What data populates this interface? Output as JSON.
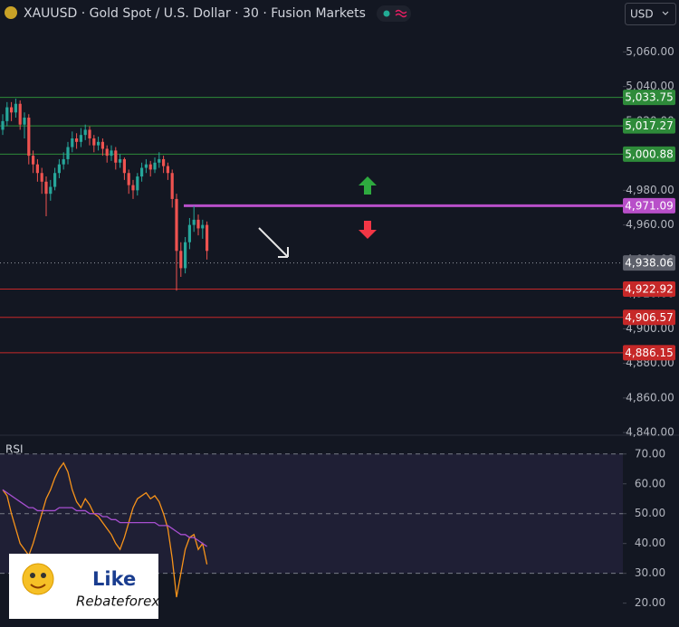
{
  "chart_data": {
    "type": "candlestick",
    "title": "XAUUSD · Gold Spot / U.S. Dollar · 30 · Fusion Markets",
    "currency": "USD",
    "up_color": "#26a69a",
    "down_color": "#ef5350",
    "ylim": [
      4839,
      5090
    ],
    "yticks": [
      {
        "value": 4840,
        "label": "4,840.00"
      },
      {
        "value": 4860,
        "label": "4,860.00"
      },
      {
        "value": 4880,
        "label": "4,880.00"
      },
      {
        "value": 4900,
        "label": "4,900.00"
      },
      {
        "value": 4920,
        "label": "4,920.00"
      },
      {
        "value": 4940,
        "label": "4,940.00"
      },
      {
        "value": 4960,
        "label": "4,960.00"
      },
      {
        "value": 4980,
        "label": "4,980.00"
      },
      {
        "value": 5000,
        "label": "5,000.00"
      },
      {
        "value": 5020,
        "label": "5,020.00"
      },
      {
        "value": 5040,
        "label": "5,040.00"
      },
      {
        "value": 5060,
        "label": "5,060.00"
      }
    ],
    "open": [
      5015,
      5020,
      5028,
      5025,
      5030,
      5018,
      5022,
      5000,
      4995,
      4990,
      4985,
      4978,
      4982,
      4990,
      4995,
      4998,
      5005,
      5010,
      5008,
      5012,
      5015,
      5010,
      5006,
      5008,
      5004,
      5000,
      5003,
      4996,
      4998,
      4990,
      4983,
      4980,
      4988,
      4993,
      4995,
      4992,
      4996,
      4998,
      4994,
      4990,
      4975,
      4945,
      4935,
      4950,
      4960,
      4963,
      4958,
      4960
    ],
    "high": [
      5024,
      5031,
      5031,
      5033,
      5032,
      5025,
      5024,
      5003,
      4998,
      4993,
      4988,
      4986,
      4993,
      4998,
      5002,
      5008,
      5014,
      5013,
      5016,
      5018,
      5017,
      5012,
      5011,
      5010,
      5006,
      5006,
      5005,
      5001,
      4999,
      4992,
      4986,
      4990,
      4996,
      4998,
      4997,
      4999,
      5002,
      5000,
      4996,
      4992,
      4978,
      4950,
      4953,
      4964,
      4971,
      4966,
      4963,
      4962
    ],
    "low": [
      5012,
      5017,
      5020,
      5022,
      5015,
      5010,
      4995,
      4990,
      4985,
      4978,
      4965,
      4974,
      4980,
      4987,
      4992,
      4995,
      5002,
      5004,
      5005,
      5009,
      5006,
      5002,
      5003,
      5000,
      4996,
      4997,
      4992,
      4993,
      4986,
      4978,
      4975,
      4977,
      4985,
      4990,
      4988,
      4990,
      4993,
      4990,
      4986,
      4970,
      4922,
      4930,
      4932,
      4946,
      4956,
      4954,
      4952,
      4940
    ],
    "close": [
      5020,
      5028,
      5025,
      5030,
      5018,
      5022,
      5000,
      4995,
      4990,
      4985,
      4978,
      4982,
      4990,
      4995,
      4998,
      5005,
      5010,
      5008,
      5012,
      5015,
      5010,
      5006,
      5008,
      5004,
      5000,
      5003,
      4996,
      4998,
      4990,
      4983,
      4980,
      4988,
      4993,
      4995,
      4992,
      4996,
      4998,
      4994,
      4990,
      4975,
      4945,
      4935,
      4950,
      4960,
      4963,
      4958,
      4960,
      4945
    ],
    "levels": {
      "values": [
        5033.75,
        5017.27,
        5000.88,
        4971.09,
        4938.06,
        4922.92,
        4906.57,
        4886.15
      ],
      "value_labels": [
        "5,033.75",
        "5,017.27",
        "5,000.88",
        "4,971.09",
        "4,938.06",
        "4,922.92",
        "4,906.57",
        "4,886.15"
      ],
      "colors": [
        "#2e8b3a",
        "#2e8b3a",
        "#2e8b3a",
        "#b84fc9",
        "#5d606b",
        "#c62828",
        "#c62828",
        "#c62828"
      ]
    },
    "rsi": {
      "label": "RSI",
      "ylim": [
        12,
        76
      ],
      "yticks": [
        {
          "value": 20,
          "label": "20.00"
        },
        {
          "value": 30,
          "label": "30.00"
        },
        {
          "value": 40,
          "label": "40.00"
        },
        {
          "value": 50,
          "label": "50.00"
        },
        {
          "value": 60,
          "label": "60.00"
        },
        {
          "value": 70,
          "label": "70.00"
        }
      ],
      "bands": [
        30,
        50,
        70
      ],
      "series": [
        {
          "color": "#f7931a",
          "values": [
            58,
            56,
            50,
            45,
            40,
            38,
            36,
            40,
            45,
            50,
            55,
            58,
            62,
            65,
            67,
            64,
            58,
            54,
            52,
            55,
            53,
            50,
            49,
            47,
            45,
            43,
            40,
            38,
            42,
            47,
            52,
            55,
            56,
            57,
            55,
            56,
            54,
            50,
            45,
            35,
            22,
            30,
            38,
            42,
            43,
            38,
            40,
            33
          ]
        },
        {
          "color": "#a74fd0",
          "values": [
            58,
            57,
            56,
            55,
            54,
            53,
            52,
            52,
            51,
            51,
            51,
            51,
            51,
            52,
            52,
            52,
            52,
            51,
            51,
            51,
            50,
            50,
            50,
            49,
            49,
            48,
            48,
            47,
            47,
            47,
            47,
            47,
            47,
            47,
            47,
            47,
            46,
            46,
            46,
            45,
            44,
            43,
            43,
            42,
            42,
            41,
            40,
            39
          ]
        }
      ]
    }
  },
  "logo": {
    "line1": "Like",
    "line2": "Rebateforex"
  }
}
